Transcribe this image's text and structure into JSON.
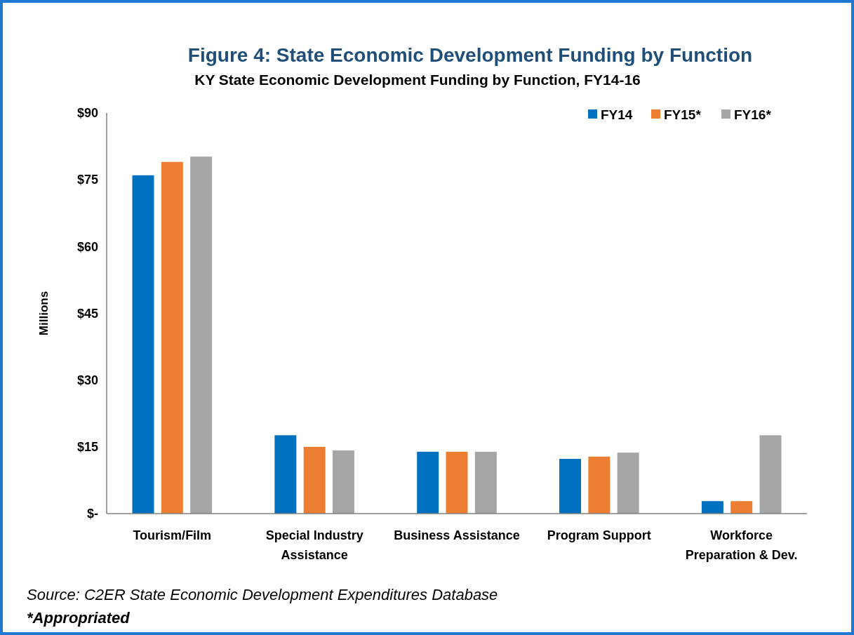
{
  "chart_data": {
    "type": "bar",
    "title": "Figure 4: State Economic Development Funding by Function",
    "subtitle": "KY State Economic Development Funding by Function, FY14-16",
    "ylabel": "Millions",
    "categories": [
      "Tourism/Film",
      "Special Industry Assistance",
      "Business Assistance",
      "Program Support",
      "Workforce Preparation & Dev."
    ],
    "series": [
      {
        "name": "FY14",
        "color": "#0070c0",
        "values": [
          76,
          17.6,
          13.9,
          12.3,
          2.8
        ]
      },
      {
        "name": "FY15*",
        "color": "#ed7d31",
        "values": [
          79,
          15,
          13.9,
          12.8,
          2.8
        ]
      },
      {
        "name": "FY16*",
        "color": "#a5a5a5",
        "values": [
          80.2,
          14.2,
          13.9,
          13.7,
          17.6
        ]
      }
    ],
    "ylim": [
      0,
      90
    ],
    "yticks": [
      {
        "value": 0,
        "label": "$-"
      },
      {
        "value": 15,
        "label": "$15"
      },
      {
        "value": 30,
        "label": "$30"
      },
      {
        "value": 45,
        "label": "$45"
      },
      {
        "value": 60,
        "label": "$60"
      },
      {
        "value": 75,
        "label": "$75"
      },
      {
        "value": 90,
        "label": "$90"
      }
    ],
    "grid": false,
    "legend": "top right",
    "annotations": [
      "Source: C2ER State Economic Development Expenditures Database",
      "*Appropriated"
    ]
  }
}
